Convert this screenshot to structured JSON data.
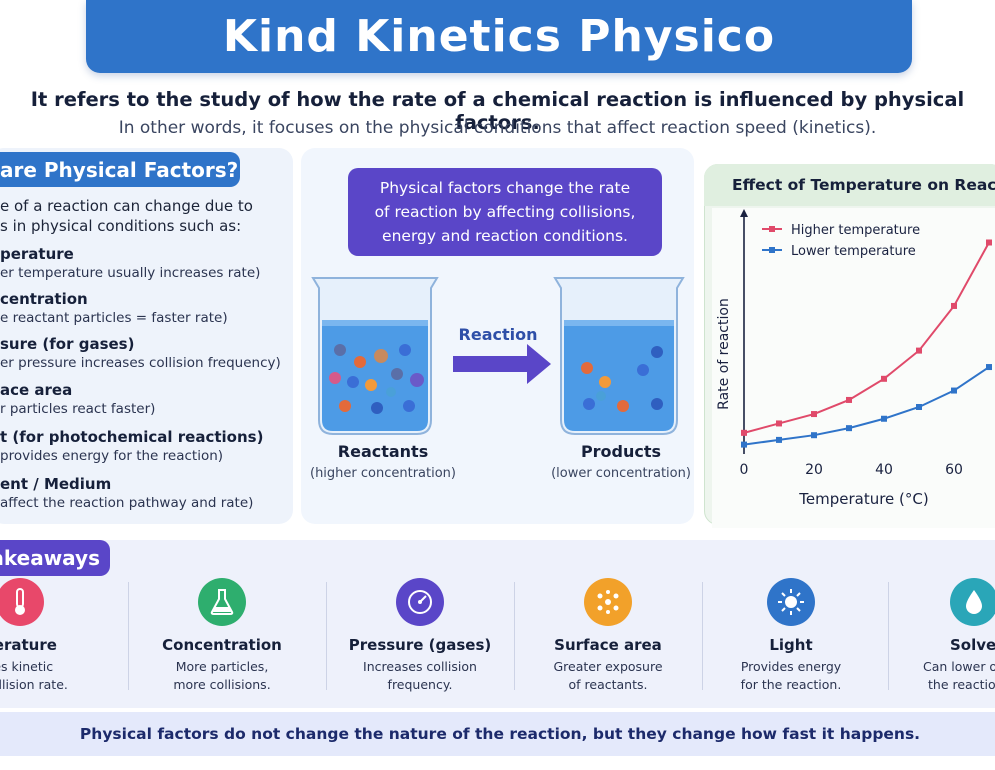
{
  "title": "Kind Kinetics Physico",
  "lead": "It refers to the study of how the rate of a chemical reaction is influenced by physical factors.",
  "subtitle": "In other words, it focuses on the physical conditions that affect reaction speed (kinetics).",
  "physical_factors": {
    "heading": "are Physical Factors?",
    "intro_line1": "e of a reaction can change due to",
    "intro_line2": "s in physical conditions such as:",
    "items": [
      {
        "name": "perature",
        "desc": "er temperature usually increases rate)"
      },
      {
        "name": "centration",
        "desc": "e reactant particles = faster rate)"
      },
      {
        "name": "sure (for gases)",
        "desc": "er pressure increases collision frequency)"
      },
      {
        "name": "ace area",
        "desc": "r particles react faster)"
      },
      {
        "name": "t (for photochemical reactions)",
        "desc": "provides energy for the reaction)"
      },
      {
        "name": "ent / Medium",
        "desc": "affect the reaction pathway and rate)"
      }
    ]
  },
  "callout": {
    "line1": "Physical factors change the rate",
    "line2": "of reaction by affecting collisions,",
    "line3": "energy and reaction conditions."
  },
  "reaction": {
    "arrow_label": "Reaction",
    "reactants_label": "Reactants",
    "reactants_sub": "(higher concentration)",
    "products_label": "Products",
    "products_sub": "(lower concentration)"
  },
  "chart_data": {
    "type": "line",
    "title": "Effect of Temperature on Reactio",
    "xlabel": "Temperature (°C)",
    "ylabel": "Rate of reaction",
    "x_ticks": [
      0,
      20,
      40,
      60
    ],
    "xlim": [
      0,
      70
    ],
    "ylim": [
      0,
      10
    ],
    "grid": false,
    "legend_position": "top-left",
    "series": [
      {
        "name": "Higher temperature",
        "color": "#e04a6a",
        "x": [
          0,
          10,
          20,
          30,
          40,
          50,
          60,
          70
        ],
        "y": [
          0.9,
          1.3,
          1.7,
          2.3,
          3.2,
          4.4,
          6.3,
          9.0
        ]
      },
      {
        "name": "Lower temperature",
        "color": "#2f74c9",
        "x": [
          0,
          10,
          20,
          30,
          40,
          50,
          60,
          70
        ],
        "y": [
          0.4,
          0.6,
          0.8,
          1.1,
          1.5,
          2.0,
          2.7,
          3.7
        ]
      }
    ]
  },
  "takeaways": {
    "heading": "akeaways",
    "items": [
      {
        "name": "perature",
        "desc1": "ses kinetic",
        "desc2": "d collision rate.",
        "icon": "thermometer-icon",
        "color": "#e8486a"
      },
      {
        "name": "Concentration",
        "desc1": "More particles,",
        "desc2": "more collisions.",
        "icon": "flask-icon",
        "color": "#2eae6e"
      },
      {
        "name": "Pressure (gases)",
        "desc1": "Increases collision",
        "desc2": "frequency.",
        "icon": "gauge-icon",
        "color": "#5a46c8"
      },
      {
        "name": "Surface area",
        "desc1": "Greater exposure",
        "desc2": "of reactants.",
        "icon": "particles-icon",
        "color": "#f2a12a"
      },
      {
        "name": "Light",
        "desc1": "Provides energy",
        "desc2": "for the reaction.",
        "icon": "sun-icon",
        "color": "#2f74c9"
      },
      {
        "name": "Solver",
        "desc1": "Can lower o",
        "desc2": "the reaction",
        "icon": "drop-icon",
        "color": "#2aa6b8"
      }
    ]
  },
  "footer": "Physical factors do not change the nature of the reaction, but they change how fast it happens."
}
